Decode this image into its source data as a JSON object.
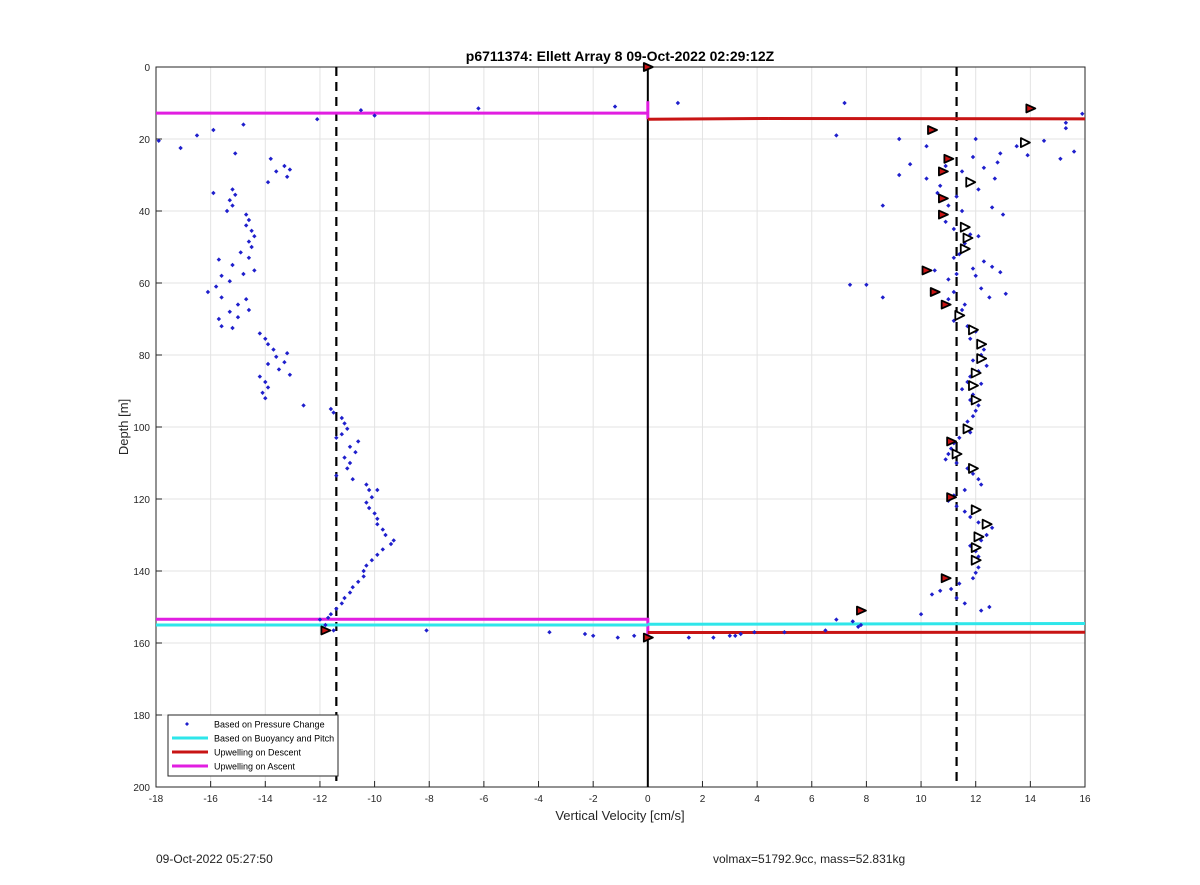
{
  "chart_data": {
    "type": "scatter",
    "title": "p6711374: Ellett Array 8 09-Oct-2022 02:29:12Z",
    "xlabel": "Vertical Velocity [cm/s]",
    "ylabel": "Depth [m]",
    "xlim": [
      -18,
      16
    ],
    "ylim": [
      0,
      200
    ],
    "y_reversed": true,
    "grid": true,
    "xticks": [
      -18,
      -16,
      -14,
      -12,
      -10,
      -8,
      -6,
      -4,
      -2,
      0,
      2,
      4,
      6,
      8,
      10,
      12,
      14,
      16
    ],
    "yticks": [
      0,
      20,
      40,
      60,
      80,
      100,
      120,
      140,
      160,
      180,
      200
    ],
    "legend_position": "bottom-left",
    "legend": [
      {
        "label": "Based on Pressure Change",
        "style": "dot",
        "color": "#1f1fcc"
      },
      {
        "label": "Based on Buoyancy and Pitch",
        "style": "line",
        "color": "#2ee6ea"
      },
      {
        "label": "Upwelling on Descent",
        "style": "line",
        "color": "#c81414"
      },
      {
        "label": "Upwelling on Ascent",
        "style": "line",
        "color": "#e11ee1"
      }
    ],
    "reference_lines": {
      "vertical_dashed_x": [
        -11.4,
        11.3
      ],
      "vertical_solid_x": 0
    },
    "series": [
      {
        "name": "Based on Pressure Change",
        "kind": "points",
        "color": "#1f1fcc",
        "points": [
          [
            -17.9,
            20.5
          ],
          [
            -17.1,
            22.5
          ],
          [
            -16.5,
            19
          ],
          [
            -15.9,
            17.5
          ],
          [
            -15.1,
            24
          ],
          [
            -14.8,
            16
          ],
          [
            -13.8,
            25.5
          ],
          [
            -13.3,
            27.5
          ],
          [
            -13.1,
            28.5
          ],
          [
            -13.6,
            29
          ],
          [
            -13.2,
            30.5
          ],
          [
            -13.9,
            32
          ],
          [
            -15.2,
            34
          ],
          [
            -15.1,
            35.5
          ],
          [
            -15.9,
            35
          ],
          [
            -15.3,
            37
          ],
          [
            -15.2,
            38.5
          ],
          [
            -15.4,
            40
          ],
          [
            -14.7,
            41
          ],
          [
            -14.6,
            42.5
          ],
          [
            -14.7,
            44
          ],
          [
            -14.5,
            45.5
          ],
          [
            -14.4,
            47
          ],
          [
            -14.6,
            48.5
          ],
          [
            -14.5,
            50
          ],
          [
            -14.9,
            51.5
          ],
          [
            -14.6,
            53
          ],
          [
            -15.7,
            53.5
          ],
          [
            -15.2,
            55
          ],
          [
            -14.4,
            56.5
          ],
          [
            -14.8,
            57.5
          ],
          [
            -15.6,
            58
          ],
          [
            -15.3,
            59.5
          ],
          [
            -15.8,
            61
          ],
          [
            -16.1,
            62.5
          ],
          [
            -15.6,
            64
          ],
          [
            -14.7,
            64.5
          ],
          [
            -15.0,
            66
          ],
          [
            -14.6,
            67.5
          ],
          [
            -15.3,
            68
          ],
          [
            -15.0,
            69.5
          ],
          [
            -15.7,
            70
          ],
          [
            -15.6,
            72
          ],
          [
            -15.2,
            72.5
          ],
          [
            -14.2,
            74
          ],
          [
            -14.0,
            75.5
          ],
          [
            -13.9,
            77
          ],
          [
            -13.7,
            78.5
          ],
          [
            -13.2,
            79.5
          ],
          [
            -13.6,
            80.5
          ],
          [
            -13.3,
            82
          ],
          [
            -13.9,
            82.5
          ],
          [
            -13.5,
            84
          ],
          [
            -13.1,
            85.5
          ],
          [
            -14.2,
            86
          ],
          [
            -14.0,
            87.5
          ],
          [
            -13.9,
            89
          ],
          [
            -14.1,
            90.5
          ],
          [
            -14.0,
            92
          ],
          [
            -12.6,
            94
          ],
          [
            -11.6,
            95
          ],
          [
            -11.5,
            96
          ],
          [
            -11.2,
            97.5
          ],
          [
            -11.1,
            99
          ],
          [
            -11.0,
            100.5
          ],
          [
            -11.2,
            102
          ],
          [
            -11.4,
            103
          ],
          [
            -10.6,
            104
          ],
          [
            -10.9,
            105.5
          ],
          [
            -10.7,
            107
          ],
          [
            -11.1,
            108.5
          ],
          [
            -10.9,
            110
          ],
          [
            -11.0,
            111.5
          ],
          [
            -11.4,
            113.5
          ],
          [
            -10.8,
            114.5
          ],
          [
            -10.3,
            116
          ],
          [
            -10.2,
            117.5
          ],
          [
            -9.9,
            117.5
          ],
          [
            -10.1,
            119.5
          ],
          [
            -10.3,
            121
          ],
          [
            -10.2,
            122.5
          ],
          [
            -10.0,
            124
          ],
          [
            -9.9,
            125.5
          ],
          [
            -9.9,
            127
          ],
          [
            -9.7,
            128.5
          ],
          [
            -9.6,
            130
          ],
          [
            -9.3,
            131.5
          ],
          [
            -9.4,
            132.5
          ],
          [
            -9.7,
            134
          ],
          [
            -9.9,
            135.5
          ],
          [
            -10.1,
            137
          ],
          [
            -10.3,
            138.5
          ],
          [
            -10.4,
            140
          ],
          [
            -10.4,
            141.5
          ],
          [
            -10.6,
            143
          ],
          [
            -10.8,
            144.5
          ],
          [
            -10.9,
            146
          ],
          [
            -11.1,
            147.5
          ],
          [
            -11.2,
            149
          ],
          [
            -11.4,
            150.5
          ],
          [
            -11.6,
            152
          ],
          [
            -11.7,
            153
          ],
          [
            -12.0,
            153.5
          ],
          [
            -11.8,
            155
          ],
          [
            -11.5,
            156.5
          ],
          [
            -8.1,
            156.5
          ],
          [
            -3.6,
            157
          ],
          [
            -2.3,
            157.5
          ],
          [
            -2.0,
            158
          ],
          [
            -1.1,
            158.5
          ],
          [
            -0.5,
            158
          ],
          [
            -0.1,
            158.5
          ],
          [
            -12.1,
            14.5
          ],
          [
            -10.5,
            12
          ],
          [
            -10.0,
            13.5
          ],
          [
            -6.2,
            11.5
          ],
          [
            -1.2,
            11
          ],
          [
            1.1,
            10
          ],
          [
            7.2,
            10
          ],
          [
            6.9,
            19
          ],
          [
            9.2,
            20
          ],
          [
            10.2,
            22
          ],
          [
            9.6,
            27
          ],
          [
            10.9,
            27.5
          ],
          [
            9.2,
            30
          ],
          [
            10.2,
            31
          ],
          [
            11.5,
            29
          ],
          [
            11.9,
            25
          ],
          [
            10.7,
            33
          ],
          [
            12.1,
            34
          ],
          [
            10.6,
            35
          ],
          [
            11.3,
            36
          ],
          [
            11.0,
            38.5
          ],
          [
            8.6,
            38.5
          ],
          [
            11.5,
            40
          ],
          [
            10.7,
            41.5
          ],
          [
            10.9,
            43
          ],
          [
            12.6,
            39
          ],
          [
            13.0,
            41
          ],
          [
            12.7,
            31
          ],
          [
            12.3,
            28
          ],
          [
            12.8,
            26.5
          ],
          [
            11.2,
            45
          ],
          [
            11.8,
            46.5
          ],
          [
            11.6,
            49
          ],
          [
            11.4,
            52
          ],
          [
            12.1,
            47
          ],
          [
            11.2,
            53
          ],
          [
            12.3,
            54
          ],
          [
            12.6,
            55.5
          ],
          [
            11.9,
            56
          ],
          [
            10.5,
            56.5
          ],
          [
            11.3,
            57.5
          ],
          [
            11.0,
            59
          ],
          [
            12.0,
            58
          ],
          [
            12.9,
            57
          ],
          [
            7.4,
            60.5
          ],
          [
            8.0,
            60.5
          ],
          [
            8.6,
            64
          ],
          [
            10.4,
            62
          ],
          [
            11.2,
            62.5
          ],
          [
            12.2,
            61.5
          ],
          [
            12.5,
            64
          ],
          [
            13.1,
            63
          ],
          [
            11.0,
            64.5
          ],
          [
            11.6,
            66
          ],
          [
            11.5,
            67.5
          ],
          [
            11.3,
            69
          ],
          [
            11.2,
            70.5
          ],
          [
            11.7,
            72
          ],
          [
            12.0,
            73.5
          ],
          [
            11.8,
            75.5
          ],
          [
            12.1,
            77
          ],
          [
            12.3,
            78.5
          ],
          [
            12.2,
            80
          ],
          [
            11.9,
            81.5
          ],
          [
            12.4,
            83
          ],
          [
            12.1,
            84.5
          ],
          [
            11.8,
            86
          ],
          [
            11.7,
            87.5
          ],
          [
            12.2,
            88
          ],
          [
            11.5,
            89.5
          ],
          [
            11.9,
            91
          ],
          [
            11.8,
            92.5
          ],
          [
            12.1,
            94
          ],
          [
            12.0,
            95.5
          ],
          [
            11.9,
            97
          ],
          [
            11.7,
            98.5
          ],
          [
            11.6,
            100
          ],
          [
            11.8,
            101.5
          ],
          [
            11.4,
            103
          ],
          [
            11.2,
            104.5
          ],
          [
            11.1,
            106
          ],
          [
            11.0,
            107.5
          ],
          [
            10.9,
            109
          ],
          [
            11.3,
            110
          ],
          [
            11.7,
            111.5
          ],
          [
            11.9,
            113
          ],
          [
            12.1,
            114.5
          ],
          [
            12.2,
            116
          ],
          [
            11.6,
            117.5
          ],
          [
            11.2,
            119
          ],
          [
            11.0,
            120.5
          ],
          [
            11.3,
            122
          ],
          [
            11.6,
            123.5
          ],
          [
            11.8,
            125
          ],
          [
            12.1,
            126.5
          ],
          [
            12.6,
            128
          ],
          [
            12.4,
            130
          ],
          [
            12.2,
            131.5
          ],
          [
            11.8,
            133
          ],
          [
            12.0,
            134.5
          ],
          [
            12.1,
            136
          ],
          [
            11.9,
            137.5
          ],
          [
            12.1,
            139
          ],
          [
            12.0,
            140.5
          ],
          [
            11.9,
            142
          ],
          [
            11.4,
            143.5
          ],
          [
            11.1,
            145
          ],
          [
            10.7,
            145.5
          ],
          [
            10.4,
            146.5
          ],
          [
            11.3,
            147.5
          ],
          [
            11.6,
            149
          ],
          [
            12.5,
            150
          ],
          [
            12.2,
            151
          ],
          [
            10.0,
            152
          ],
          [
            6.9,
            153.5
          ],
          [
            7.5,
            154
          ],
          [
            7.8,
            155
          ],
          [
            7.7,
            155.5
          ],
          [
            6.5,
            156.5
          ],
          [
            5.0,
            157
          ],
          [
            3.9,
            157
          ],
          [
            3.4,
            157.5
          ],
          [
            3.0,
            158
          ],
          [
            2.4,
            158.5
          ],
          [
            1.5,
            158.5
          ],
          [
            3.2,
            158
          ],
          [
            12.9,
            24
          ],
          [
            13.5,
            22
          ],
          [
            14.5,
            20.5
          ],
          [
            13.9,
            24.5
          ],
          [
            15.3,
            15.5
          ],
          [
            15.3,
            17
          ],
          [
            15.9,
            13
          ],
          [
            15.1,
            25.5
          ],
          [
            15.6,
            23.5
          ],
          [
            12.0,
            20
          ]
        ]
      },
      {
        "name": "Upwelling on Ascent",
        "kind": "segments",
        "color": "#e11ee1",
        "segments": [
          [
            -18,
            12.8,
            0,
            12.8
          ],
          [
            -18,
            153.4,
            0,
            153.4
          ],
          [
            0,
            9.5,
            0,
            14.5
          ],
          [
            0,
            153,
            0,
            158.5
          ]
        ]
      },
      {
        "name": "Based on Buoyancy and Pitch",
        "kind": "segments",
        "color": "#2ee6ea",
        "segments": [
          [
            -18,
            155,
            0,
            155
          ],
          [
            0,
            154.8,
            16,
            154.6
          ]
        ]
      },
      {
        "name": "Upwelling on Descent",
        "kind": "segments",
        "color": "#c81414",
        "segments": [
          [
            0,
            14.5,
            4.4,
            14.3
          ],
          [
            4.4,
            14.3,
            16,
            14.4
          ],
          [
            0,
            157.1,
            16,
            157
          ]
        ]
      },
      {
        "name": "",
        "kind": "filled-markers",
        "color": "#c81414",
        "points": [
          [
            0,
            0
          ],
          [
            14.0,
            11.5
          ],
          [
            10.4,
            17.5
          ],
          [
            11.0,
            25.5
          ],
          [
            10.8,
            29
          ],
          [
            10.8,
            36.5
          ],
          [
            10.8,
            41
          ],
          [
            10.2,
            56.5
          ],
          [
            10.5,
            62.5
          ],
          [
            10.9,
            66
          ],
          [
            11.1,
            104
          ],
          [
            11.1,
            119.5
          ],
          [
            10.9,
            142
          ],
          [
            7.8,
            151
          ],
          [
            -11.8,
            156.5
          ],
          [
            0,
            158.5
          ]
        ]
      },
      {
        "name": "",
        "kind": "open-markers",
        "color": "#000000",
        "points": [
          [
            13.8,
            21
          ],
          [
            11.8,
            32
          ],
          [
            11.6,
            44.5
          ],
          [
            11.7,
            47.5
          ],
          [
            11.6,
            50.5
          ],
          [
            11.4,
            69
          ],
          [
            11.9,
            73
          ],
          [
            12.2,
            77
          ],
          [
            12.2,
            81
          ],
          [
            12.0,
            85
          ],
          [
            11.9,
            88.5
          ],
          [
            12.0,
            92.5
          ],
          [
            11.7,
            100.5
          ],
          [
            11.3,
            107.5
          ],
          [
            11.9,
            111.5
          ],
          [
            12.0,
            123
          ],
          [
            12.4,
            127
          ],
          [
            12.1,
            130.5
          ],
          [
            12.0,
            133.5
          ],
          [
            12.0,
            137
          ]
        ]
      }
    ]
  },
  "footer": {
    "timestamp": "09-Oct-2022 05:27:50",
    "vehicle_info": "volmax=51792.9cc, mass=52.831kg"
  }
}
